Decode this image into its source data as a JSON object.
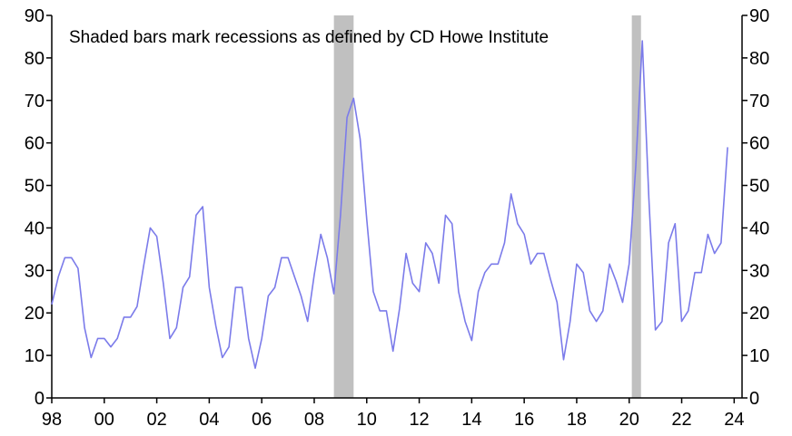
{
  "chart_data": {
    "type": "line",
    "annotation": "Shaded bars mark recessions as defined by CD Howe Institute",
    "x_tick_labels": [
      "98",
      "00",
      "02",
      "04",
      "06",
      "08",
      "10",
      "12",
      "14",
      "16",
      "18",
      "20",
      "22",
      "24"
    ],
    "x_tick_years": [
      1998,
      2000,
      2002,
      2004,
      2006,
      2008,
      2010,
      2012,
      2014,
      2016,
      2018,
      2020,
      2022,
      2024
    ],
    "xlim": [
      1998,
      2024.3
    ],
    "ylim": [
      0,
      90
    ],
    "y_ticks": [
      0,
      10,
      20,
      30,
      40,
      50,
      60,
      70,
      80,
      90
    ],
    "grid": false,
    "series_color": "#7b7bea",
    "recession_color": "#c0c0c0",
    "recessions": [
      {
        "start": 2008.75,
        "end": 2009.5
      },
      {
        "start": 2020.1,
        "end": 2020.45
      }
    ],
    "series": [
      {
        "x": [
          1998.0,
          1998.25,
          1998.5,
          1998.75,
          1999.0,
          1999.25,
          1999.5,
          1999.75,
          2000.0,
          2000.25,
          2000.5,
          2000.75,
          2001.0,
          2001.25,
          2001.5,
          2001.75,
          2002.0,
          2002.25,
          2002.5,
          2002.75,
          2003.0,
          2003.25,
          2003.5,
          2003.75,
          2004.0,
          2004.25,
          2004.5,
          2004.75,
          2005.0,
          2005.25,
          2005.5,
          2005.75,
          2006.0,
          2006.25,
          2006.5,
          2006.75,
          2007.0,
          2007.25,
          2007.5,
          2007.75,
          2008.0,
          2008.25,
          2008.5,
          2008.75,
          2009.0,
          2009.25,
          2009.5,
          2009.75,
          2010.0,
          2010.25,
          2010.5,
          2010.75,
          2011.0,
          2011.25,
          2011.5,
          2011.75,
          2012.0,
          2012.25,
          2012.5,
          2012.75,
          2013.0,
          2013.25,
          2013.5,
          2013.75,
          2014.0,
          2014.25,
          2014.5,
          2014.75,
          2015.0,
          2015.25,
          2015.5,
          2015.75,
          2016.0,
          2016.25,
          2016.5,
          2016.75,
          2017.0,
          2017.25,
          2017.5,
          2017.75,
          2018.0,
          2018.25,
          2018.5,
          2018.75,
          2019.0,
          2019.25,
          2019.5,
          2019.75,
          2020.0,
          2020.25,
          2020.5,
          2020.75,
          2021.0,
          2021.25,
          2021.5,
          2021.75,
          2022.0,
          2022.25,
          2022.5,
          2022.75,
          2023.0,
          2023.25,
          2023.5,
          2023.75
        ],
        "values": [
          22,
          28.5,
          33,
          33,
          30.5,
          16.5,
          9.5,
          14,
          14,
          12,
          14,
          19,
          19,
          21.5,
          31,
          40,
          38,
          27,
          14,
          16.5,
          26,
          28.5,
          43,
          45,
          26,
          17,
          9.5,
          12,
          26,
          26,
          14,
          7,
          14,
          24,
          26,
          33,
          33,
          28.5,
          24,
          18,
          29,
          38.5,
          33,
          24.5,
          43,
          66,
          70.5,
          61,
          42,
          25,
          20.5,
          20.5,
          11,
          21,
          34,
          27,
          25,
          36.5,
          34,
          27,
          43,
          41,
          25,
          18,
          13.5,
          25,
          29.5,
          31.5,
          31.5,
          36.5,
          48,
          41,
          38.5,
          31.5,
          34,
          34,
          28,
          22.5,
          9,
          18,
          31.5,
          29.5,
          20.5,
          18,
          20.5,
          31.5,
          27.5,
          22.5,
          31.5,
          54.5,
          84,
          47,
          16,
          18,
          36.5,
          41,
          18,
          20.5,
          29.5,
          29.5,
          38.5,
          34,
          36.5,
          59
        ]
      }
    ]
  }
}
